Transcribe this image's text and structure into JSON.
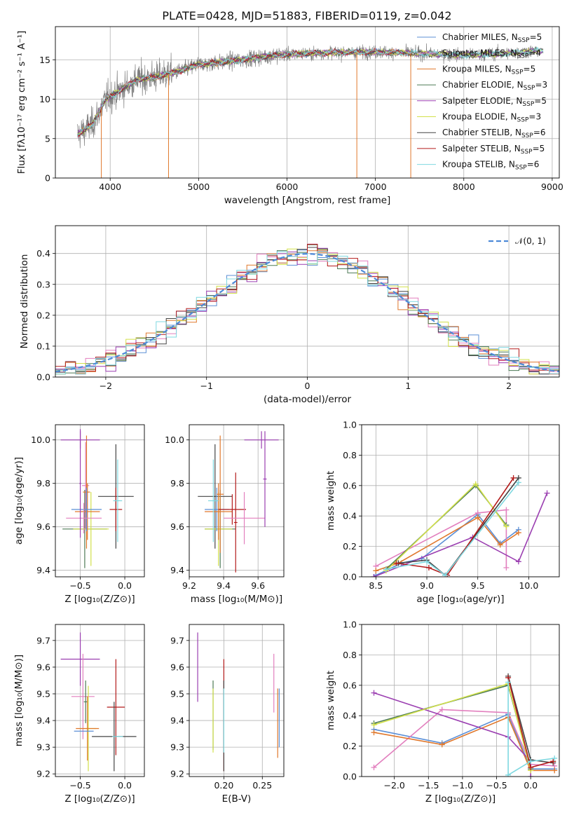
{
  "colors": {
    "chabrier_miles": "#5b8fd6",
    "salpeter_miles": "#e27fbe",
    "kroupa_miles": "#e0782c",
    "chabrier_elodie": "#4c7a55",
    "salpeter_elodie": "#9b3fb1",
    "kroupa_elodie": "#d2e04a",
    "chabrier_stelib": "#444444",
    "salpeter_stelib": "#b31b1b",
    "kroupa_stelib": "#7fd8e0",
    "spectrum": "#7f7f7f",
    "normal": "#4d8ad8",
    "grid": "#b0b0b0"
  },
  "chart_data": [
    {
      "id": "spectrum",
      "type": "line",
      "title": "PLATE=0428, MJD=51883, FIBERID=0119, z=0.042",
      "xlabel": "wavelength [Angstrom, rest frame]",
      "ylabel": "Flux [fλ10⁻¹⁷ erg cm⁻² s⁻¹ A⁻¹]",
      "xlim": [
        3380,
        9080
      ],
      "ylim": [
        0,
        19.2
      ],
      "xticks": [
        "4000",
        "5000",
        "6000",
        "7000",
        "8000",
        "9000"
      ],
      "yticks": [
        "0",
        "5",
        "10",
        "15"
      ],
      "legend_position": "upper right",
      "legend": [
        {
          "text": "Chabrier MILES, N",
          "sub": "SSP",
          "tail": "=5"
        },
        {
          "text": "Salpeter MILES, N",
          "sub": "SSP",
          "tail": "=4"
        },
        {
          "text": "Kroupa MILES, N",
          "sub": "SSP",
          "tail": "=5"
        },
        {
          "text": "Chabrier ELODIE, N",
          "sub": "SSP",
          "tail": "=3"
        },
        {
          "text": "Salpeter ELODIE, N",
          "sub": "SSP",
          "tail": "=5"
        },
        {
          "text": "Kroupa ELODIE, N",
          "sub": "SSP",
          "tail": "=3"
        },
        {
          "text": "Chabrier STELIB, N",
          "sub": "SSP",
          "tail": "=6"
        },
        {
          "text": "Salpeter STELIB, N",
          "sub": "SSP",
          "tail": "=5"
        },
        {
          "text": "Kroupa STELIB, N",
          "sub": "SSP",
          "tail": "=6"
        }
      ],
      "continuum": [
        [
          3630,
          5.5
        ],
        [
          3800,
          6.8
        ],
        [
          3950,
          10.0
        ],
        [
          4100,
          11.0
        ],
        [
          4300,
          12.5
        ],
        [
          4500,
          12.8
        ],
        [
          4800,
          13.6
        ],
        [
          5000,
          14.4
        ],
        [
          5200,
          14.6
        ],
        [
          5500,
          15.0
        ],
        [
          5800,
          15.5
        ],
        [
          6000,
          15.7
        ],
        [
          6500,
          15.9
        ],
        [
          7000,
          16.0
        ],
        [
          7500,
          15.8
        ],
        [
          8000,
          15.6
        ],
        [
          8500,
          15.8
        ],
        [
          8850,
          16.2
        ]
      ],
      "model_end": [
        7400,
        7400,
        7400,
        8900,
        8900,
        8900,
        8900,
        7400,
        8900
      ],
      "drops": [
        {
          "x": 3900,
          "to": 0
        },
        {
          "x": 4660,
          "to": 0
        },
        {
          "x": 6790,
          "to": 0
        },
        {
          "x": 7400,
          "to": 0
        }
      ]
    },
    {
      "id": "residual_hist",
      "type": "line",
      "xlabel": "(data-model)/error",
      "ylabel": "Normed distribution",
      "xlim": [
        -2.5,
        2.5
      ],
      "ylim": [
        0,
        0.49
      ],
      "xticks": [
        "−2",
        "−1",
        "0",
        "1",
        "2"
      ],
      "yticks": [
        "0.0",
        "0.1",
        "0.2",
        "0.3",
        "0.4"
      ],
      "legend": "𝒩(0, 1)",
      "bin_width": 0.1,
      "series_spread": 0.045
    },
    {
      "id": "age_vs_Z",
      "type": "scatter",
      "xlabel": "Z [log₁₀(Z/Z⊙)]",
      "ylabel": "age  [log₁₀(age/yr)]",
      "xlim": [
        -0.78,
        0.22
      ],
      "ylim": [
        9.37,
        10.07
      ],
      "xticks": [
        "−0.5",
        "0.0"
      ],
      "yticks": [
        "9.4",
        "9.6",
        "9.8",
        "10.0"
      ],
      "points": [
        {
          "x": -0.45,
          "y": 9.59,
          "xe": 0.25,
          "ye": 0.18,
          "c": "chabrier_elodie"
        },
        {
          "x": -0.38,
          "y": 9.59,
          "xe": 0.2,
          "ye": 0.17,
          "c": "kroupa_elodie"
        },
        {
          "x": -0.44,
          "y": 9.79,
          "xe": 0.04,
          "ye": 0.2,
          "c": "salpeter_miles"
        },
        {
          "x": -0.43,
          "y": 9.76,
          "xe": 0.04,
          "ye": 0.26,
          "c": "kroupa_miles"
        },
        {
          "x": -0.42,
          "y": 9.67,
          "xe": 0.14,
          "ye": 0.13,
          "c": "kroupa_miles"
        },
        {
          "x": -0.43,
          "y": 9.68,
          "xe": 0.17,
          "ye": 0.1,
          "c": "chabrier_miles"
        },
        {
          "x": -0.46,
          "y": 9.64,
          "xe": 0.2,
          "ye": 0.07,
          "c": "salpeter_miles"
        },
        {
          "x": -0.5,
          "y": 10.0,
          "xe": 0.22,
          "ye": 0.04,
          "c": "salpeter_elodie"
        },
        {
          "x": -0.5,
          "y": 9.8,
          "xe": 0.01,
          "ye": 0.25,
          "c": "salpeter_elodie"
        },
        {
          "x": -0.1,
          "y": 9.74,
          "xe": 0.2,
          "ye": 0.24,
          "c": "chabrier_stelib"
        },
        {
          "x": -0.1,
          "y": 9.68,
          "xe": 0.07,
          "ye": 0.1,
          "c": "salpeter_stelib"
        },
        {
          "x": -0.08,
          "y": 9.72,
          "xe": 0.05,
          "ye": 0.19,
          "c": "kroupa_stelib"
        }
      ]
    },
    {
      "id": "age_vs_mass",
      "type": "scatter",
      "xlabel": "mass [log₁₀(M/M⊙)]",
      "ylabel": "",
      "xlim": [
        9.2,
        9.75
      ],
      "ylim": [
        9.37,
        10.07
      ],
      "xticks": [
        "9.2",
        "9.4",
        "9.6"
      ],
      "yticks": [
        "9.4",
        "9.6",
        "9.8",
        "10.0"
      ],
      "points": [
        {
          "x": 9.35,
          "y": 9.74,
          "xe": 0.1,
          "ye": 0.24,
          "c": "chabrier_stelib"
        },
        {
          "x": 9.38,
          "y": 9.59,
          "xe": 0.09,
          "ye": 0.18,
          "c": "chabrier_elodie"
        },
        {
          "x": 9.37,
          "y": 9.59,
          "xe": 0.08,
          "ye": 0.17,
          "c": "kroupa_elodie"
        },
        {
          "x": 9.36,
          "y": 9.68,
          "xe": 0.07,
          "ye": 0.1,
          "c": "chabrier_miles"
        },
        {
          "x": 9.37,
          "y": 9.67,
          "xe": 0.08,
          "ye": 0.13,
          "c": "kroupa_miles"
        },
        {
          "x": 9.38,
          "y": 9.75,
          "xe": 0.02,
          "ye": 0.27,
          "c": "kroupa_miles"
        },
        {
          "x": 9.34,
          "y": 9.72,
          "xe": 0.03,
          "ye": 0.19,
          "c": "kroupa_stelib"
        },
        {
          "x": 9.45,
          "y": 9.68,
          "xe": 0.08,
          "ye": 0.07,
          "c": "salpeter_stelib"
        },
        {
          "x": 9.47,
          "y": 9.62,
          "xe": 0.01,
          "ye": 0.23,
          "c": "salpeter_stelib"
        },
        {
          "x": 9.52,
          "y": 9.64,
          "xe": 0.12,
          "ye": 0.12,
          "c": "salpeter_miles"
        },
        {
          "x": 9.62,
          "y": 10.0,
          "xe": 0.1,
          "ye": 0.04,
          "c": "salpeter_elodie"
        },
        {
          "x": 9.64,
          "y": 9.82,
          "xe": 0.01,
          "ye": 0.22,
          "c": "salpeter_elodie"
        }
      ]
    },
    {
      "id": "massweight_vs_age",
      "type": "line",
      "xlabel": "age  [log₁₀(age/yr)]",
      "ylabel": "mass weight",
      "xlim": [
        8.36,
        10.3
      ],
      "ylim": [
        0,
        1
      ],
      "xticks": [
        "8.5",
        "9.0",
        "9.5",
        "10.0"
      ],
      "yticks": [
        "0.0",
        "0.2",
        "0.4",
        "0.6",
        "0.8",
        "1.0"
      ],
      "series": [
        {
          "c": "chabrier_miles",
          "x": [
            8.5,
            8.75,
            8.95,
            9.5,
            9.72,
            9.9
          ],
          "y": [
            0.01,
            0.09,
            0.12,
            0.41,
            0.22,
            0.31
          ]
        },
        {
          "c": "salpeter_miles",
          "x": [
            8.5,
            9.5,
            9.78,
            9.78
          ],
          "y": [
            0.07,
            0.42,
            0.44,
            0.06
          ]
        },
        {
          "c": "kroupa_miles",
          "x": [
            8.5,
            8.72,
            9.5,
            9.72,
            9.9
          ],
          "y": [
            0.04,
            0.09,
            0.39,
            0.21,
            0.29
          ]
        },
        {
          "c": "chabrier_elodie",
          "x": [
            8.6,
            9.48,
            9.78
          ],
          "y": [
            0.05,
            0.6,
            0.34
          ]
        },
        {
          "c": "salpeter_elodie",
          "x": [
            8.48,
            9.45,
            9.9,
            10.18
          ],
          "y": [
            0.0,
            0.26,
            0.1,
            0.55
          ]
        },
        {
          "c": "kroupa_elodie",
          "x": [
            8.6,
            9.48,
            9.78
          ],
          "y": [
            0.04,
            0.61,
            0.33
          ]
        },
        {
          "c": "chabrier_stelib",
          "x": [
            8.72,
            9.0,
            9.18,
            9.9
          ],
          "y": [
            0.09,
            0.11,
            0.01,
            0.65
          ]
        },
        {
          "c": "salpeter_stelib",
          "x": [
            8.7,
            9.02,
            9.2,
            9.85
          ],
          "y": [
            0.09,
            0.06,
            0.01,
            0.65
          ]
        },
        {
          "c": "kroupa_stelib",
          "x": [
            8.6,
            9.0,
            9.18,
            9.9
          ],
          "y": [
            0.05,
            0.1,
            0.01,
            0.62
          ]
        }
      ]
    },
    {
      "id": "mass_vs_Z",
      "type": "scatter",
      "xlabel": "Z [log₁₀(Z/Z⊙)]",
      "ylabel": "mass [log₁₀(M/M⊙)]",
      "xlim": [
        -0.78,
        0.22
      ],
      "ylim": [
        9.19,
        9.76
      ],
      "xticks": [
        "−0.5",
        "0.0"
      ],
      "yticks": [
        "9.2",
        "9.3",
        "9.4",
        "9.5",
        "9.6",
        "9.7"
      ],
      "points": [
        {
          "x": -0.5,
          "y": 9.63,
          "xe": 0.22,
          "ye": 0.1,
          "c": "salpeter_elodie"
        },
        {
          "x": -0.47,
          "y": 9.49,
          "xe": 0.13,
          "ye": 0.16,
          "c": "salpeter_miles"
        },
        {
          "x": -0.44,
          "y": 9.47,
          "xe": 0.02,
          "ye": 0.08,
          "c": "chabrier_elodie"
        },
        {
          "x": -0.41,
          "y": 9.37,
          "xe": 0.09,
          "ye": 0.16,
          "c": "kroupa_elodie"
        },
        {
          "x": -0.42,
          "y": 9.37,
          "xe": 0.13,
          "ye": 0.12,
          "c": "kroupa_miles"
        },
        {
          "x": -0.46,
          "y": 9.36,
          "xe": 0.11,
          "ye": 0.0,
          "c": "chabrier_miles"
        },
        {
          "x": -0.1,
          "y": 9.45,
          "xe": 0.1,
          "ye": 0.18,
          "c": "salpeter_stelib"
        },
        {
          "x": -0.12,
          "y": 9.34,
          "xe": 0.25,
          "ye": 0.13,
          "c": "chabrier_stelib"
        },
        {
          "x": -0.08,
          "y": 9.34,
          "xe": 0.06,
          "ye": 0.0,
          "c": "kroupa_stelib"
        }
      ]
    },
    {
      "id": "mass_vs_ebv",
      "type": "scatter",
      "xlabel": "E(B-V)",
      "ylabel": "",
      "xlim": [
        0.155,
        0.278
      ],
      "ylim": [
        9.19,
        9.76
      ],
      "xticks": [
        "0.20",
        "0.25"
      ],
      "yticks": [
        "9.2",
        "9.3",
        "9.4",
        "9.5",
        "9.6",
        "9.7"
      ],
      "points": [
        {
          "x": 0.166,
          "y": 9.6,
          "xe": 0,
          "ye": 0.13,
          "c": "salpeter_elodie"
        },
        {
          "x": 0.186,
          "y": 9.42,
          "xe": 0,
          "ye": 0.13,
          "c": "chabrier_elodie"
        },
        {
          "x": 0.186,
          "y": 9.4,
          "xe": 0,
          "ye": 0.12,
          "c": "kroupa_elodie"
        },
        {
          "x": 0.2,
          "y": 9.42,
          "xe": 0,
          "ye": 0.21,
          "c": "salpeter_stelib"
        },
        {
          "x": 0.2,
          "y": 9.38,
          "xe": 0,
          "ye": 0.17,
          "c": "chabrier_stelib"
        },
        {
          "x": 0.2,
          "y": 9.4,
          "xe": 0,
          "ye": 0.12,
          "c": "kroupa_stelib"
        },
        {
          "x": 0.265,
          "y": 9.54,
          "xe": 0,
          "ye": 0.11,
          "c": "salpeter_miles"
        },
        {
          "x": 0.27,
          "y": 9.39,
          "xe": 0,
          "ye": 0.13,
          "c": "kroupa_miles"
        },
        {
          "x": 0.272,
          "y": 9.41,
          "xe": 0,
          "ye": 0.11,
          "c": "chabrier_miles"
        }
      ]
    },
    {
      "id": "massweight_vs_Z",
      "type": "line",
      "xlabel": "Z [log₁₀(Z/Z⊙)]",
      "ylabel": "mass weight",
      "xlim": [
        -2.48,
        0.42
      ],
      "ylim": [
        0,
        1
      ],
      "xticks": [
        "−2.0",
        "−1.5",
        "−1.0",
        "−0.5",
        "0.0"
      ],
      "yticks": [
        "0.0",
        "0.2",
        "0.4",
        "0.6",
        "0.8",
        "1.0"
      ],
      "series": [
        {
          "c": "chabrier_miles",
          "x": [
            -2.3,
            -1.3,
            -0.33,
            0.0,
            0.35
          ],
          "y": [
            0.31,
            0.22,
            0.41,
            0.05,
            0.05
          ]
        },
        {
          "c": "salpeter_miles",
          "x": [
            -2.3,
            -1.3,
            -0.33,
            0.0,
            0.35
          ],
          "y": [
            0.06,
            0.44,
            0.42,
            0.08,
            0.07
          ]
        },
        {
          "c": "kroupa_miles",
          "x": [
            -2.3,
            -1.3,
            -0.33,
            0.0,
            0.35
          ],
          "y": [
            0.29,
            0.21,
            0.39,
            0.04,
            0.04
          ]
        },
        {
          "c": "chabrier_elodie",
          "x": [
            -2.3,
            -0.33,
            0.0
          ],
          "y": [
            0.35,
            0.6,
            0.05
          ]
        },
        {
          "c": "salpeter_elodie",
          "x": [
            -2.3,
            -0.33,
            0.0,
            0.0
          ],
          "y": [
            0.55,
            0.26,
            0.1,
            0.0
          ]
        },
        {
          "c": "kroupa_elodie",
          "x": [
            -2.3,
            -0.33,
            0.0
          ],
          "y": [
            0.34,
            0.61,
            0.04
          ]
        },
        {
          "c": "chabrier_stelib",
          "x": [
            -0.33,
            0.0,
            0.33
          ],
          "y": [
            0.66,
            0.11,
            0.09
          ]
        },
        {
          "c": "salpeter_stelib",
          "x": [
            -0.33,
            0.0,
            0.33
          ],
          "y": [
            0.65,
            0.06,
            0.1
          ]
        },
        {
          "c": "kroupa_stelib",
          "x": [
            -0.33,
            -0.33,
            0.0,
            0.35
          ],
          "y": [
            0.62,
            0.01,
            0.1,
            0.12
          ]
        }
      ]
    }
  ]
}
